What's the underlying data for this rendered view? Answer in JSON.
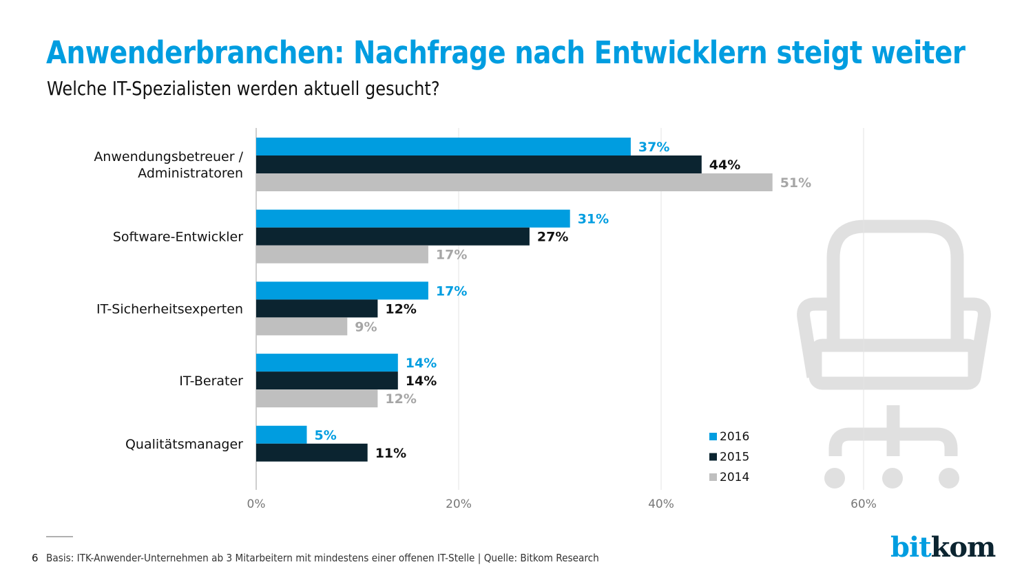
{
  "header": {
    "title": "Anwenderbranchen: Nachfrage nach Entwicklern steigt weiter",
    "subtitle": "Welche IT-Spezialisten werden aktuell gesucht?"
  },
  "colors": {
    "brand_blue": "#009de0",
    "dark": "#0b2430",
    "gray": "#bfbfbf",
    "label_gray": "#a6a6a6",
    "gridline": "#e3e3e3",
    "axis": "#bdbdbd",
    "icon_gray": "#e0e0e0"
  },
  "chart_data": {
    "type": "bar",
    "orientation": "horizontal",
    "title": "Welche IT-Spezialisten werden aktuell gesucht?",
    "xlabel": "",
    "ylabel": "",
    "xlim": [
      0,
      60
    ],
    "x_ticks": [
      0,
      20,
      40,
      60
    ],
    "x_tick_labels": [
      "0%",
      "20%",
      "40%",
      "60%"
    ],
    "grid": true,
    "legend_position": "bottom-right",
    "categories": [
      [
        "Anwendungsbetreuer /",
        "Administratoren"
      ],
      [
        "Software-Entwickler"
      ],
      [
        "IT-Sicherheitsexperten"
      ],
      [
        "IT-Berater"
      ],
      [
        "Qualitätsmanager"
      ]
    ],
    "series": [
      {
        "name": "2016",
        "color": "#009de0",
        "label_color": "#009de0",
        "label_weight": "bold",
        "values": [
          37,
          31,
          17,
          14,
          5
        ]
      },
      {
        "name": "2015",
        "color": "#0b2430",
        "label_color": "#111111",
        "label_weight": "bold",
        "values": [
          44,
          27,
          12,
          14,
          11
        ]
      },
      {
        "name": "2014",
        "color": "#bfbfbf",
        "label_color": "#a6a6a6",
        "label_weight": "bold",
        "values": [
          51,
          17,
          9,
          12,
          null
        ]
      }
    ],
    "value_suffix": "%"
  },
  "decoration": {
    "icon": "office-chair-icon"
  },
  "footer": {
    "page_number": "6",
    "note": "Basis: ITK-Anwender-Unternehmen ab 3 Mitarbeitern mit mindestens einer offenen IT-Stelle | Quelle: Bitkom Research",
    "logo_part1": "bit",
    "logo_part2": "kom"
  }
}
